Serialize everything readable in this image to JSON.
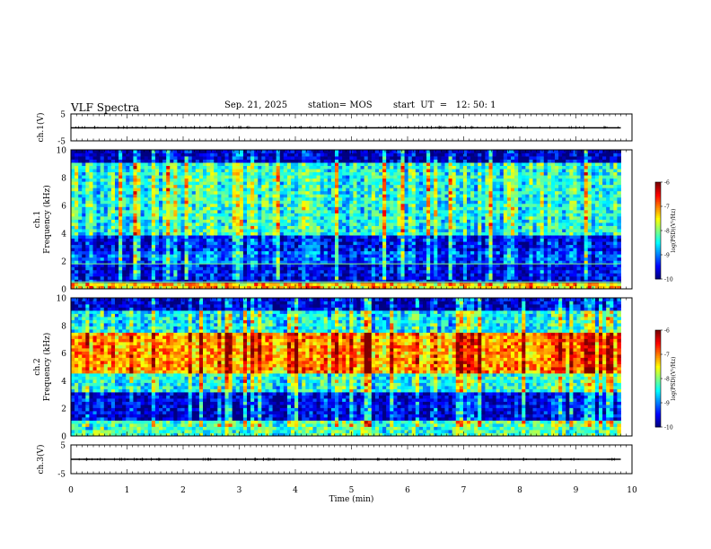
{
  "header": {
    "title": "VLF Spectra",
    "date": "Sep. 21, 2025",
    "station": "station= MOS",
    "start": "start  UT  =   12: 50: 1"
  },
  "chart_data": [
    {
      "type": "line",
      "panel": "ch1-waveform",
      "ylabel": "ch.1(V)",
      "yticks": [
        "5",
        "-5"
      ],
      "ylim": [
        -5,
        5
      ],
      "xlim": [
        0,
        10
      ],
      "series": [
        {
          "x": [
            0,
            9.8
          ],
          "y": [
            0,
            0
          ]
        }
      ]
    },
    {
      "type": "heatmap",
      "panel": "ch1-spectrogram",
      "ylabel": "ch.1\nFrequency (kHz)",
      "ylim": [
        0,
        10
      ],
      "yticks": [
        "0",
        "2",
        "4",
        "6",
        "8",
        "10"
      ],
      "xlim": [
        0,
        10
      ],
      "data_xmax": 9.8,
      "colorbar": {
        "label": "log(PSD)(V²/Hz)",
        "ticks": [
          "-6",
          "-7",
          "-8",
          "-9",
          "-10"
        ],
        "range": [
          -10,
          -6
        ]
      },
      "bands": [
        {
          "fmin": 0.0,
          "fmax": 0.5,
          "log_psd": -7.3
        },
        {
          "fmin": 0.5,
          "fmax": 1.8,
          "log_psd": -9.6
        },
        {
          "fmin": 1.8,
          "fmax": 2.8,
          "log_psd": -9.2
        },
        {
          "fmin": 2.8,
          "fmax": 3.8,
          "log_psd": -9.5
        },
        {
          "fmin": 3.8,
          "fmax": 9.0,
          "log_psd": -8.4
        },
        {
          "fmin": 9.0,
          "fmax": 10.0,
          "log_psd": -9.8
        }
      ]
    },
    {
      "type": "heatmap",
      "panel": "ch2-spectrogram",
      "ylabel": "ch.2\nFrequency (kHz)",
      "ylim": [
        0,
        10
      ],
      "yticks": [
        "0",
        "2",
        "4",
        "6",
        "8",
        "10"
      ],
      "xlim": [
        0,
        10
      ],
      "data_xmax": 9.8,
      "colorbar": {
        "label": "log(PSD)(V²/Hz)",
        "ticks": [
          "-6",
          "-7",
          "-8",
          "-9",
          "-10"
        ],
        "range": [
          -10,
          -6
        ]
      },
      "bands": [
        {
          "fmin": 0.0,
          "fmax": 1.2,
          "log_psd": -8.2
        },
        {
          "fmin": 1.2,
          "fmax": 3.2,
          "log_psd": -9.6
        },
        {
          "fmin": 3.2,
          "fmax": 4.6,
          "log_psd": -8.4
        },
        {
          "fmin": 4.6,
          "fmax": 7.6,
          "log_psd": -7.1
        },
        {
          "fmin": 7.6,
          "fmax": 9.0,
          "log_psd": -8.5
        },
        {
          "fmin": 9.0,
          "fmax": 10.0,
          "log_psd": -9.7
        }
      ]
    },
    {
      "type": "line",
      "panel": "ch3-waveform",
      "ylabel": "ch.3(V)",
      "yticks": [
        "5",
        "-5"
      ],
      "ylim": [
        -5,
        5
      ],
      "xlim": [
        0,
        10
      ],
      "xlabel": "Time (min)",
      "xticks": [
        "0",
        "1",
        "2",
        "3",
        "4",
        "5",
        "6",
        "7",
        "8",
        "9",
        "10"
      ],
      "series": [
        {
          "x": [
            0,
            9.8
          ],
          "y": [
            0,
            0
          ]
        }
      ]
    }
  ]
}
